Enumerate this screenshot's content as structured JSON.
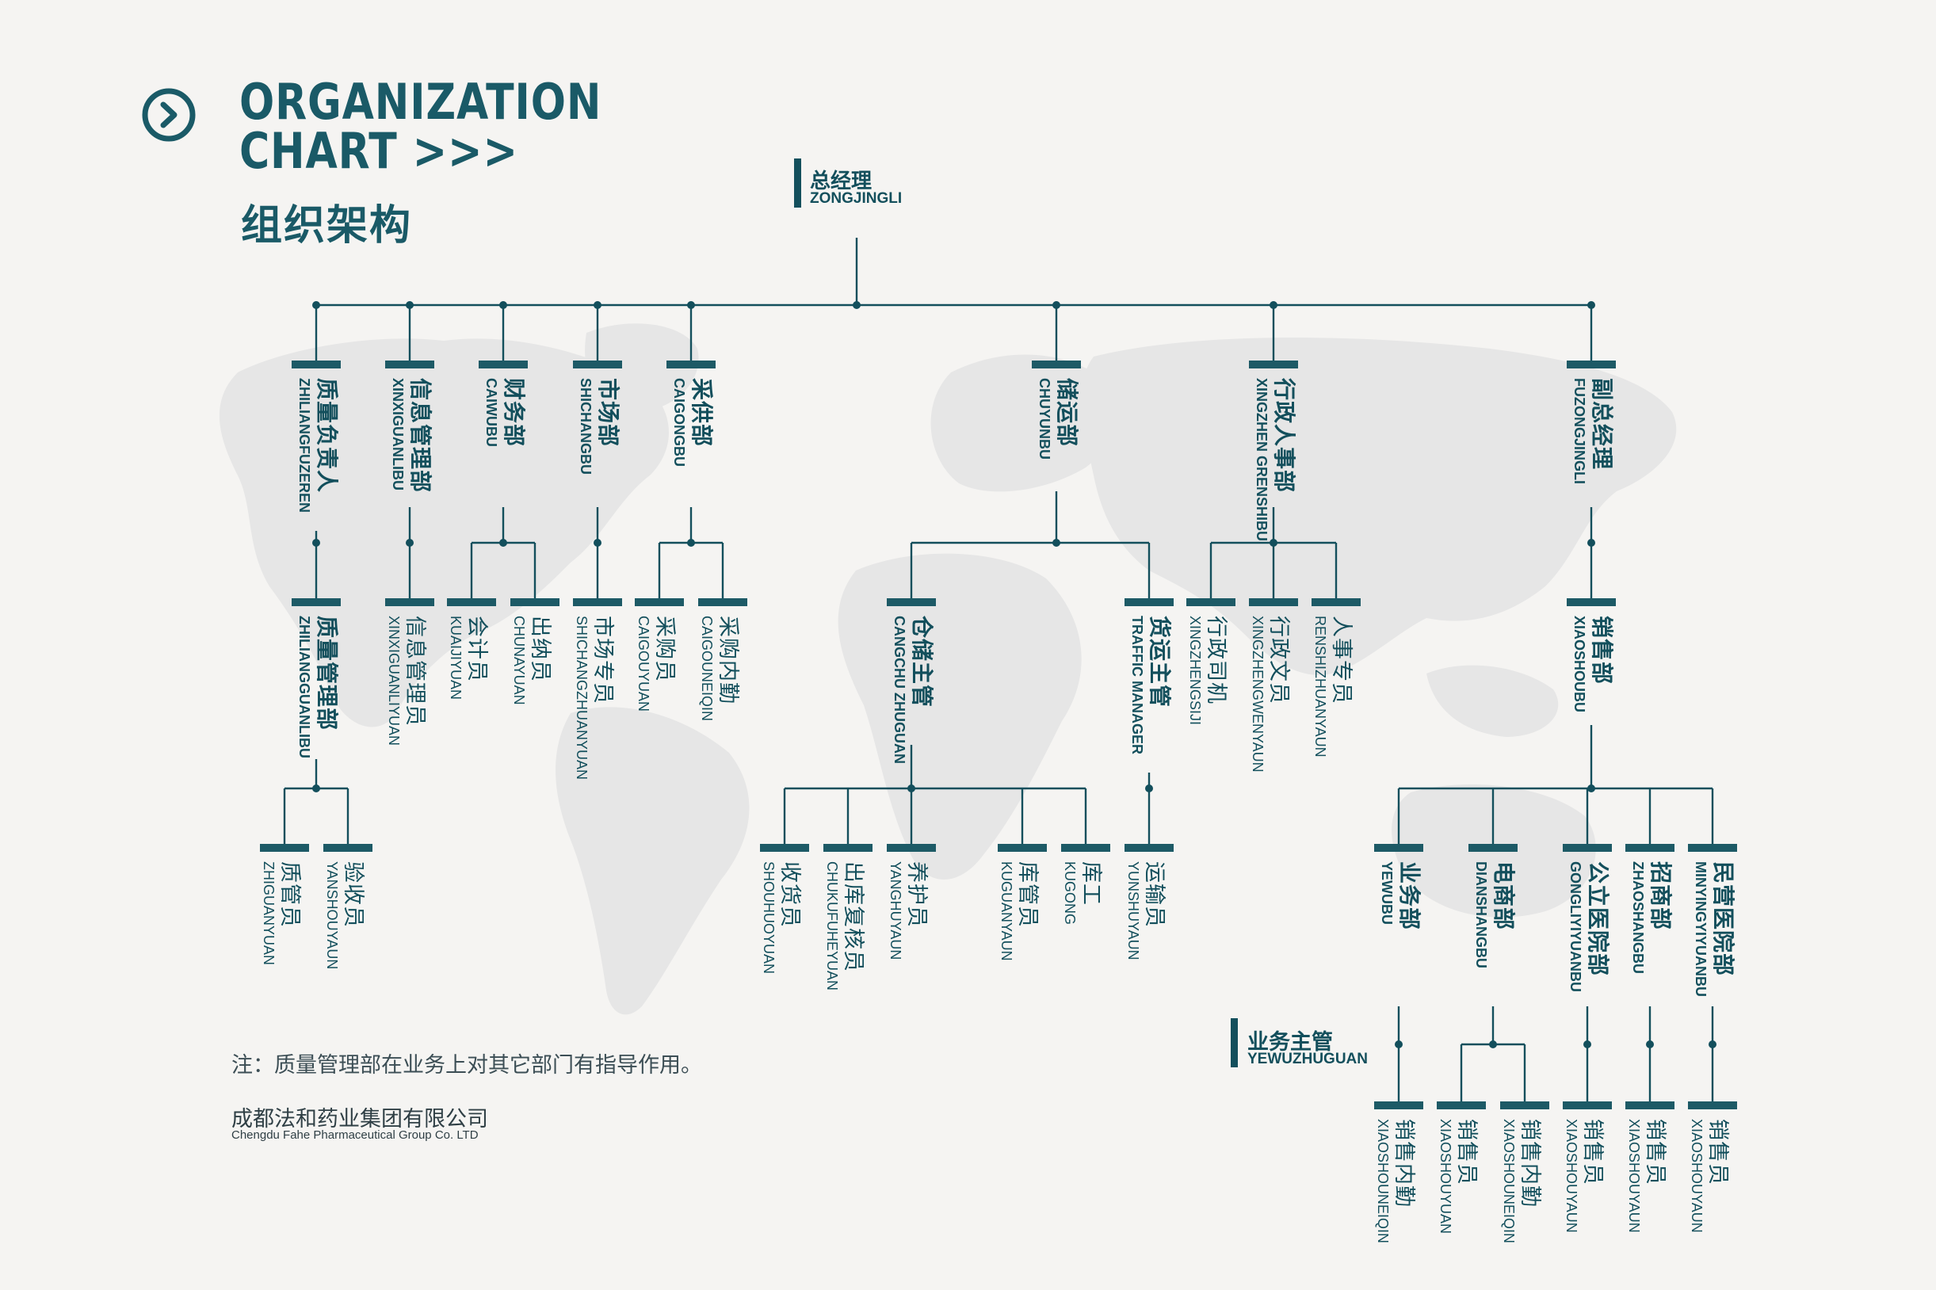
{
  "title": {
    "line1": "ORGANIZATION",
    "line2": "CHART >>>",
    "cn": "组织架构",
    "icon": "chevron-right-circle-icon"
  },
  "root": {
    "cn": "总经理",
    "en": "ZONGJINGLI"
  },
  "yewuzhuguan": {
    "cn": "业务主管",
    "en": "YEWUZHUGUAN"
  },
  "note": "注：质量管理部在业务上对其它部门有指导作用。",
  "company": {
    "cn": "成都法和药业集团有限公司",
    "en": "Chengdu Fahe Pharmaceutical Group Co. LTD"
  },
  "colors": {
    "primary": "#134f5c",
    "background": "#f5f4f2",
    "map": "#e6e6e6"
  },
  "departments": [
    {
      "key": "zhiliang",
      "cn": "质量负责人",
      "en": "ZHILIANGFUZEREN",
      "children": [
        {
          "key": "zhiliangguanli",
          "cn": "质量管理部",
          "en": "ZHILIANGGUANLIBU",
          "children": [
            {
              "key": "zhiguan",
              "cn": "质管员",
              "en": "ZHIGUANYUAN"
            },
            {
              "key": "yanshou",
              "cn": "验收员",
              "en": "YANSHOUYAUN"
            }
          ]
        }
      ]
    },
    {
      "key": "xinxi",
      "cn": "信息管理部",
      "en": "XINXIGUANLIBU",
      "children": [
        {
          "key": "xinxiyuan",
          "cn": "信息管理员",
          "en": "XINXIGUANLIYUAN"
        }
      ]
    },
    {
      "key": "caiwu",
      "cn": "财务部",
      "en": "CAIWUBU",
      "children": [
        {
          "key": "kuaiji",
          "cn": "会计员",
          "en": "KUAIJIYUAN"
        },
        {
          "key": "chuna",
          "cn": "出纳员",
          "en": "CHUNAYUAN"
        }
      ]
    },
    {
      "key": "shichang",
      "cn": "市场部",
      "en": "SHICHANGBU",
      "children": [
        {
          "key": "shichangzhuan",
          "cn": "市场专员",
          "en": "SHICHANGZHUANYUAN"
        }
      ]
    },
    {
      "key": "caigong",
      "cn": "采供部",
      "en": "CAIGONGBU",
      "children": [
        {
          "key": "caigou",
          "cn": "采购员",
          "en": "CAIGOUYUAN"
        },
        {
          "key": "caigouneiqin",
          "cn": "采购内勤",
          "en": "CAIGOUNEIQIN"
        }
      ]
    },
    {
      "key": "chuyun",
      "cn": "储运部",
      "en": "CHUYUNBU",
      "children": [
        {
          "key": "cangchu",
          "cn": "仓储主管",
          "en": "CANGCHU ZHUGUAN",
          "children": [
            {
              "key": "shouhuo",
              "cn": "收货员",
              "en": "SHOUHUOYUAN"
            },
            {
              "key": "chukufuhe",
              "cn": "出库复核员",
              "en": "CHUKUFUHEYUAN"
            },
            {
              "key": "yanghu",
              "cn": "养护员",
              "en": "YANGHUYAUN"
            },
            {
              "key": "kuguan",
              "cn": "库管员",
              "en": "KUGUANYAUN"
            },
            {
              "key": "kugong",
              "cn": "库工",
              "en": "KUGONG"
            }
          ]
        },
        {
          "key": "huoyun",
          "cn": "货运主管",
          "en": "TRAFFIC MANAGER",
          "children": [
            {
              "key": "yunshu",
              "cn": "运输员",
              "en": "YUNSHUYAUN"
            }
          ]
        }
      ]
    },
    {
      "key": "xingzheng",
      "cn": "行政人事部",
      "en": "XINGZHEN GRENSHIBU",
      "children": [
        {
          "key": "xingzhengsiji",
          "cn": "行政司机",
          "en": "XINGZHENGSIJI"
        },
        {
          "key": "xingzhengwenyuan",
          "cn": "行政文员",
          "en": "XINGZHENGWENYAUN"
        },
        {
          "key": "renshi",
          "cn": "人事专员",
          "en": "RENSHIZHUANYAUN"
        }
      ]
    },
    {
      "key": "fuzong",
      "cn": "副总经理",
      "en": "FUZONGJINGLI",
      "children": [
        {
          "key": "xiaoshoubu",
          "cn": "销售部",
          "en": "XIAOSHOUBU",
          "children": [
            {
              "key": "yewubu",
              "cn": "业务部",
              "en": "YEWUBU",
              "children": [
                {
                  "key": "xs1",
                  "cn": "销售内勤",
                  "en": "XIAOSHOUNEIQIN"
                }
              ]
            },
            {
              "key": "dianshang",
              "cn": "电商部",
              "en": "DIANSHANGBU",
              "children": [
                {
                  "key": "xs2",
                  "cn": "销售员",
                  "en": "XIAOSHOUYUAN"
                },
                {
                  "key": "xs3",
                  "cn": "销售内勤",
                  "en": "XIAOSHOUNEIQIN"
                }
              ]
            },
            {
              "key": "gongli",
              "cn": "公立医院部",
              "en": "GONGLIYIYUANBU",
              "children": [
                {
                  "key": "xs4",
                  "cn": "销售员",
                  "en": "XIAOSHOUYAUN"
                }
              ]
            },
            {
              "key": "zhaoshang",
              "cn": "招商部",
              "en": "ZHAOSHANGBU",
              "children": [
                {
                  "key": "xs5",
                  "cn": "销售员",
                  "en": "XIAOSHOUYAUN"
                }
              ]
            },
            {
              "key": "minying",
              "cn": "民营医院部",
              "en": "MINYINGYIYUANBU",
              "children": [
                {
                  "key": "xs6",
                  "cn": "销售员",
                  "en": "XIAOSHOUYAUN"
                }
              ]
            }
          ]
        }
      ]
    }
  ]
}
